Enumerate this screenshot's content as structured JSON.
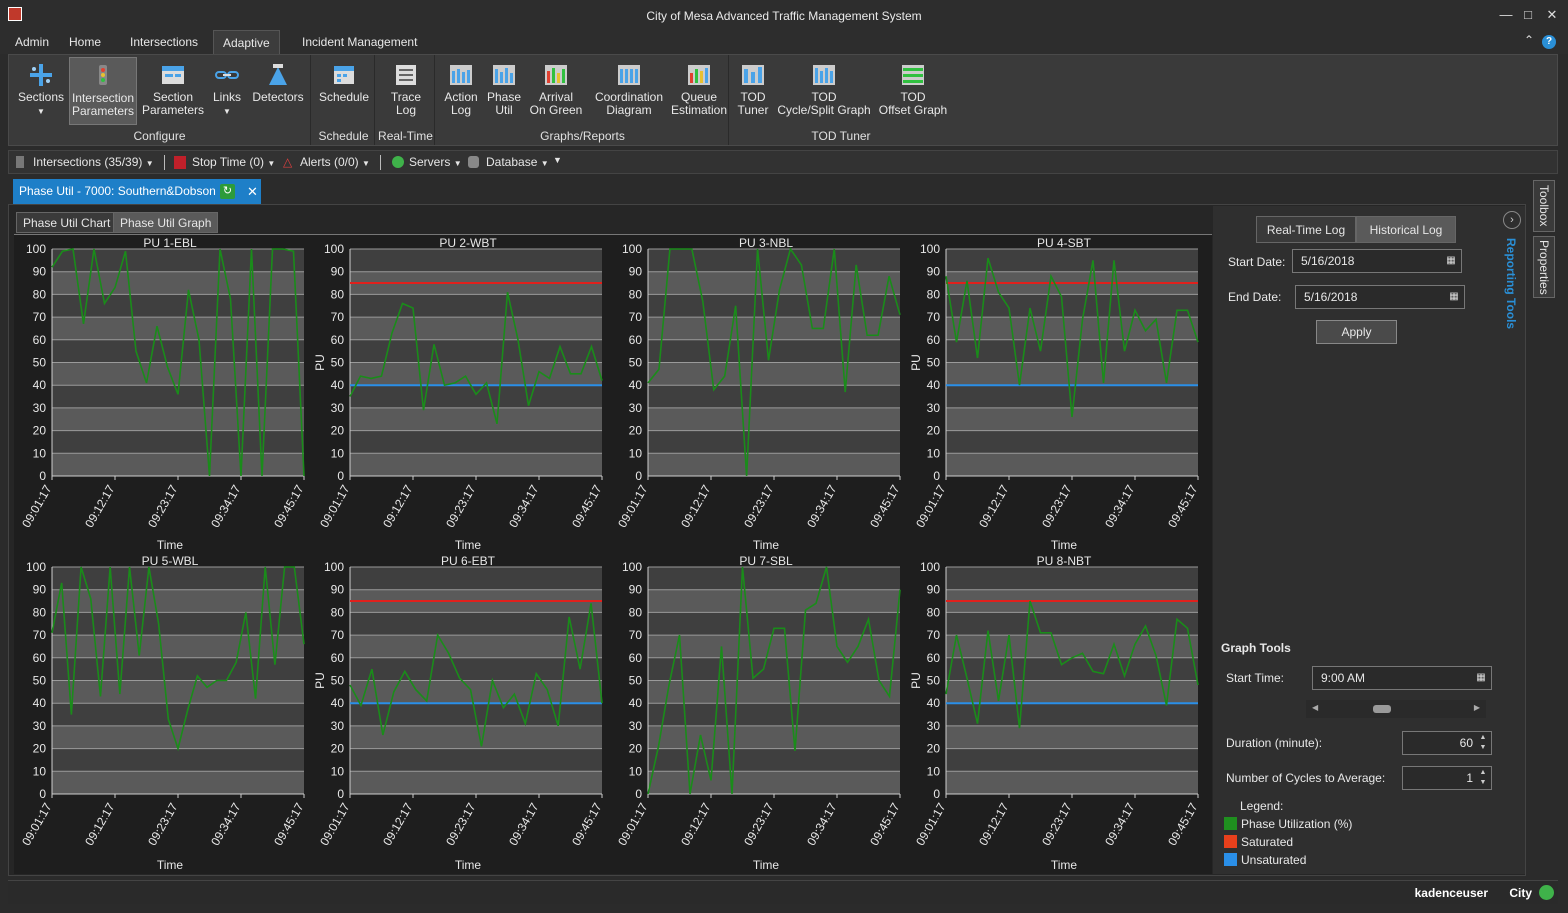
{
  "window": {
    "title": "City of Mesa Advanced Traffic Management System"
  },
  "menu": {
    "tabs": [
      "Admin",
      "Home",
      "Intersections",
      "Adaptive",
      "Incident Management"
    ],
    "active": "Adaptive"
  },
  "ribbon": {
    "configure": {
      "label": "Configure",
      "sections": "Sections",
      "intersection_params_1": "Intersection",
      "intersection_params_2": "Parameters",
      "section_params_1": "Section",
      "section_params_2": "Parameters",
      "links": "Links",
      "detectors": "Detectors"
    },
    "schedule": {
      "label": "Schedule",
      "schedule": "Schedule"
    },
    "realtime": {
      "label": "Real-Time",
      "trace_1": "Trace",
      "trace_2": "Log"
    },
    "graphs": {
      "label": "Graphs/Reports",
      "action_1": "Action",
      "action_2": "Log",
      "phase_1": "Phase",
      "phase_2": "Util",
      "arrival_1": "Arrival",
      "arrival_2": "On Green",
      "coord_1": "Coordination",
      "coord_2": "Diagram",
      "queue_1": "Queue",
      "queue_2": "Estimation"
    },
    "tod": {
      "label": "TOD Tuner",
      "tuner_1": "TOD",
      "tuner_2": "Tuner",
      "cycle_1": "TOD",
      "cycle_2": "Cycle/Split Graph",
      "offset_1": "TOD",
      "offset_2": "Offset Graph"
    }
  },
  "status": {
    "intersections": "Intersections (35/39)",
    "stop_time": "Stop Time (0)",
    "alerts": "Alerts (0/0)",
    "servers": "Servers",
    "database": "Database"
  },
  "doc_tab": {
    "label": "Phase Util - 7000: Southern&Dobson"
  },
  "sub_tabs": {
    "chart": "Phase Util Chart",
    "graph": "Phase Util Graph"
  },
  "panel": {
    "realtime_log": "Real-Time Log",
    "historical_log": "Historical Log",
    "start_date_label": "Start Date:",
    "start_date": "5/16/2018",
    "end_date_label": "End Date:",
    "end_date": "5/16/2018",
    "apply": "Apply",
    "graph_tools": "Graph Tools",
    "start_time_label": "Start Time:",
    "start_time": "9:00 AM",
    "duration_label": "Duration (minute):",
    "duration": "60",
    "cycles_label": "Number of Cycles to Average:",
    "cycles": "1",
    "legend_title": "Legend:",
    "legend_items": [
      {
        "label": "Phase Utilization (%)",
        "color": "#1f8f1f"
      },
      {
        "label": "Saturated",
        "color": "#e8401c"
      },
      {
        "label": "Unsaturated",
        "color": "#2a8fe8"
      }
    ]
  },
  "side_tabs": {
    "toolbox": "Toolbox",
    "properties": "Properties",
    "reporting": "Reporting Tools"
  },
  "footer": {
    "user": "kadenceuser",
    "city": "City"
  },
  "colors": {
    "utilization": "#1a8c1a",
    "saturated": "#e0201c",
    "unsaturated": "#2a8fe8"
  },
  "chart_data": [
    {
      "type": "line",
      "title": "PU 1-EBL",
      "xlabel": "Time",
      "ylabel": "",
      "ylim": [
        0,
        100
      ],
      "ticks_y": [
        0,
        10,
        20,
        30,
        40,
        50,
        60,
        70,
        80,
        90,
        100
      ],
      "x_ticks": [
        "09:01:17",
        "09:12:17",
        "09:23:17",
        "09:34:17",
        "09:45:17"
      ],
      "saturated": null,
      "unsaturated": null,
      "values": [
        92,
        99,
        100,
        67,
        100,
        76,
        83,
        99,
        55,
        41,
        66,
        48,
        36,
        82,
        60,
        0,
        100,
        78,
        0,
        100,
        0,
        100,
        100,
        99,
        0
      ]
    },
    {
      "type": "line",
      "title": "PU 2-WBT",
      "xlabel": "Time",
      "ylabel": "PU",
      "ylim": [
        0,
        100
      ],
      "ticks_y": [
        0,
        10,
        20,
        30,
        40,
        50,
        60,
        70,
        80,
        90,
        100
      ],
      "x_ticks": [
        "09:01:17",
        "09:12:17",
        "09:23:17",
        "09:34:17",
        "09:45:17"
      ],
      "saturated": 85,
      "unsaturated": 40,
      "values": [
        35,
        44,
        43,
        44,
        63,
        76,
        74,
        29,
        58,
        40,
        41,
        44,
        36,
        41,
        23,
        81,
        60,
        31,
        46,
        43,
        57,
        45,
        45,
        57,
        42
      ]
    },
    {
      "type": "line",
      "title": "PU 3-NBL",
      "xlabel": "Time",
      "ylabel": "",
      "ylim": [
        0,
        100
      ],
      "ticks_y": [
        0,
        10,
        20,
        30,
        40,
        50,
        60,
        70,
        80,
        90,
        100
      ],
      "x_ticks": [
        "09:01:17",
        "09:12:17",
        "09:23:17",
        "09:34:17",
        "09:45:17"
      ],
      "saturated": null,
      "unsaturated": null,
      "values": [
        41,
        47,
        100,
        100,
        100,
        77,
        38,
        44,
        75,
        0,
        100,
        51,
        82,
        100,
        93,
        65,
        65,
        100,
        37,
        93,
        62,
        62,
        88,
        71
      ]
    },
    {
      "type": "line",
      "title": "PU 4-SBT",
      "xlabel": "Time",
      "ylabel": "PU",
      "ylim": [
        0,
        100
      ],
      "ticks_y": [
        0,
        10,
        20,
        30,
        40,
        50,
        60,
        70,
        80,
        90,
        100
      ],
      "x_ticks": [
        "09:01:17",
        "09:12:17",
        "09:23:17",
        "09:34:17",
        "09:45:17"
      ],
      "saturated": 85,
      "unsaturated": 40,
      "values": [
        88,
        59,
        86,
        52,
        96,
        81,
        74,
        40,
        74,
        55,
        88,
        79,
        26,
        69,
        95,
        41,
        95,
        55,
        73,
        64,
        69,
        41,
        73,
        73,
        59
      ]
    },
    {
      "type": "line",
      "title": "PU 5-WBL",
      "xlabel": "Time",
      "ylabel": "",
      "ylim": [
        0,
        100
      ],
      "ticks_y": [
        0,
        10,
        20,
        30,
        40,
        50,
        60,
        70,
        80,
        90,
        100
      ],
      "x_ticks": [
        "09:01:17",
        "09:12:17",
        "09:23:17",
        "09:34:17",
        "09:45:17"
      ],
      "saturated": null,
      "unsaturated": null,
      "values": [
        71,
        93,
        35,
        100,
        86,
        43,
        100,
        44,
        100,
        61,
        100,
        75,
        33,
        20,
        37,
        52,
        47,
        50,
        50,
        58,
        80,
        42,
        100,
        57,
        100,
        100,
        66
      ]
    },
    {
      "type": "line",
      "title": "PU 6-EBT",
      "xlabel": "Time",
      "ylabel": "PU",
      "ylim": [
        0,
        100
      ],
      "ticks_y": [
        0,
        10,
        20,
        30,
        40,
        50,
        60,
        70,
        80,
        90,
        100
      ],
      "x_ticks": [
        "09:01:17",
        "09:12:17",
        "09:23:17",
        "09:34:17",
        "09:45:17"
      ],
      "saturated": 85,
      "unsaturated": 40,
      "values": [
        48,
        39,
        55,
        26,
        45,
        54,
        46,
        41,
        70,
        62,
        51,
        46,
        21,
        50,
        38,
        44,
        31,
        53,
        46,
        30,
        78,
        55,
        84,
        40
      ]
    },
    {
      "type": "line",
      "title": "PU 7-SBL",
      "xlabel": "Time",
      "ylabel": "",
      "ylim": [
        0,
        100
      ],
      "ticks_y": [
        0,
        10,
        20,
        30,
        40,
        50,
        60,
        70,
        80,
        90,
        100
      ],
      "x_ticks": [
        "09:01:17",
        "09:12:17",
        "09:23:17",
        "09:34:17",
        "09:45:17"
      ],
      "saturated": null,
      "unsaturated": null,
      "values": [
        0,
        21,
        48,
        70,
        0,
        26,
        6,
        65,
        0,
        100,
        51,
        55,
        73,
        73,
        19,
        81,
        84,
        100,
        65,
        58,
        65,
        77,
        50,
        43,
        90
      ]
    },
    {
      "type": "line",
      "title": "PU 8-NBT",
      "xlabel": "Time",
      "ylabel": "PU",
      "ylim": [
        0,
        100
      ],
      "ticks_y": [
        0,
        10,
        20,
        30,
        40,
        50,
        60,
        70,
        80,
        90,
        100
      ],
      "x_ticks": [
        "09:01:17",
        "09:12:17",
        "09:23:17",
        "09:34:17",
        "09:45:17"
      ],
      "saturated": 85,
      "unsaturated": 40,
      "values": [
        44,
        70,
        51,
        31,
        72,
        41,
        70,
        29,
        85,
        71,
        71,
        57,
        60,
        62,
        54,
        53,
        66,
        52,
        66,
        74,
        61,
        39,
        77,
        73,
        48
      ]
    }
  ]
}
